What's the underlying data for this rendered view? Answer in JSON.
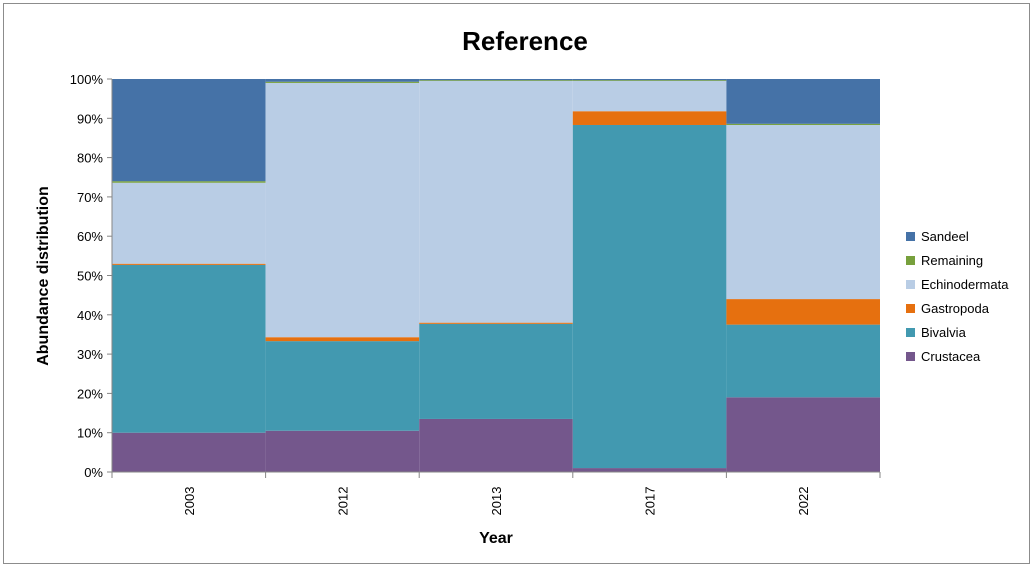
{
  "chart_data": {
    "type": "bar",
    "stacked": true,
    "percent_stacked": true,
    "title": "Reference",
    "xlabel": "Year",
    "ylabel": "Abundance distribution",
    "categories": [
      "2003",
      "2012",
      "2013",
      "2017",
      "2022"
    ],
    "ylim": [
      0,
      100
    ],
    "yticks": [
      "0%",
      "10%",
      "20%",
      "30%",
      "40%",
      "50%",
      "60%",
      "70%",
      "80%",
      "90%",
      "100%"
    ],
    "grid": false,
    "legend_position": "right",
    "series": [
      {
        "name": "Crustacea",
        "color": "#74578c",
        "values": [
          10,
          10.5,
          13.5,
          1,
          19
        ]
      },
      {
        "name": "Bivalvia",
        "color": "#4299b0",
        "values": [
          42.7,
          22.8,
          24.2,
          87.3,
          18.5
        ]
      },
      {
        "name": "Gastropoda",
        "color": "#e6700f",
        "values": [
          0.3,
          1,
          0.3,
          3.5,
          6.5
        ]
      },
      {
        "name": "Echinodermata",
        "color": "#b9cde5",
        "values": [
          20.6,
          64.7,
          61.5,
          7.7,
          44.3
        ]
      },
      {
        "name": "Remaining",
        "color": "#77a03c",
        "values": [
          0.4,
          0.3,
          0.2,
          0.2,
          0.3
        ]
      },
      {
        "name": "Sandeel",
        "color": "#4572a7",
        "values": [
          26,
          0.7,
          0.3,
          0.3,
          11.4
        ]
      }
    ],
    "legend_order": [
      "Sandeel",
      "Remaining",
      "Echinodermata",
      "Gastropoda",
      "Bivalvia",
      "Crustacea"
    ]
  }
}
